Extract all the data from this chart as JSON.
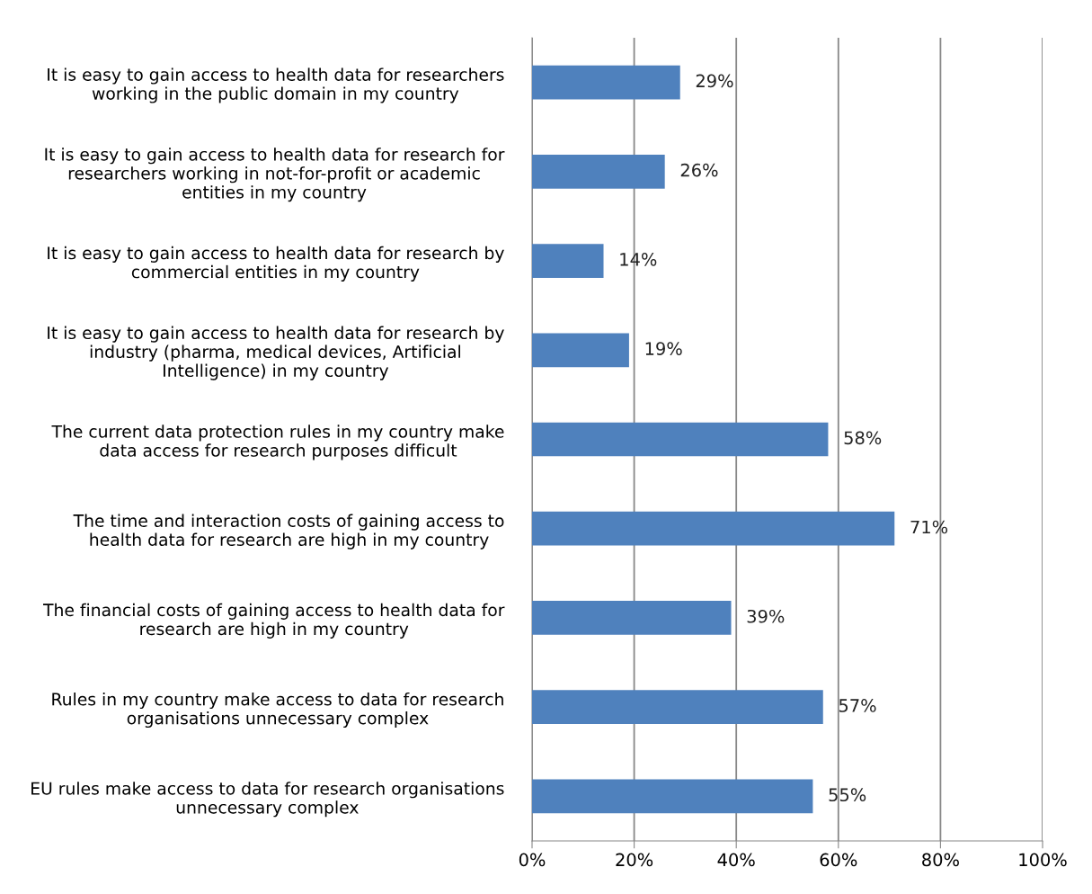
{
  "chart_data": {
    "type": "bar",
    "orientation": "horizontal",
    "categories": [
      "It is easy to gain access to health data for researchers\nworking in the public domain in my country",
      "It is easy to gain access to health data for research for\nresearchers working in not-for-profit or academic\nentities in my country",
      "It is easy to gain access to health data for research by\ncommercial entities in my country",
      "It is easy to gain access to health data for research by\nindustry (pharma, medical devices, Artificial\nIntelligence) in my country",
      "The current data protection rules in my country make\ndata access for research purposes difficult",
      "The time and interaction costs of gaining access to\nhealth data for research are high in my country",
      "The financial costs of gaining access to health data for\nresearch are high in my country",
      "Rules in my country make access to data for research\norganisations unnecessary complex",
      "EU rules make access to data for research organisations\nunnecessary complex"
    ],
    "values": [
      29,
      26,
      14,
      19,
      58,
      71,
      39,
      57,
      55
    ],
    "value_labels": [
      "29%",
      "26%",
      "14%",
      "19%",
      "58%",
      "71%",
      "39%",
      "57%",
      "55%"
    ],
    "color": "#4f81bd",
    "xlim": [
      0,
      100
    ],
    "xticks": [
      {
        "value": 0,
        "label": "0%"
      },
      {
        "value": 20,
        "label": "20%"
      },
      {
        "value": 40,
        "label": "40%"
      },
      {
        "value": 60,
        "label": "60%"
      },
      {
        "value": 80,
        "label": "80%"
      },
      {
        "value": 100,
        "label": "100%"
      }
    ],
    "grid": "x",
    "legend": false
  }
}
